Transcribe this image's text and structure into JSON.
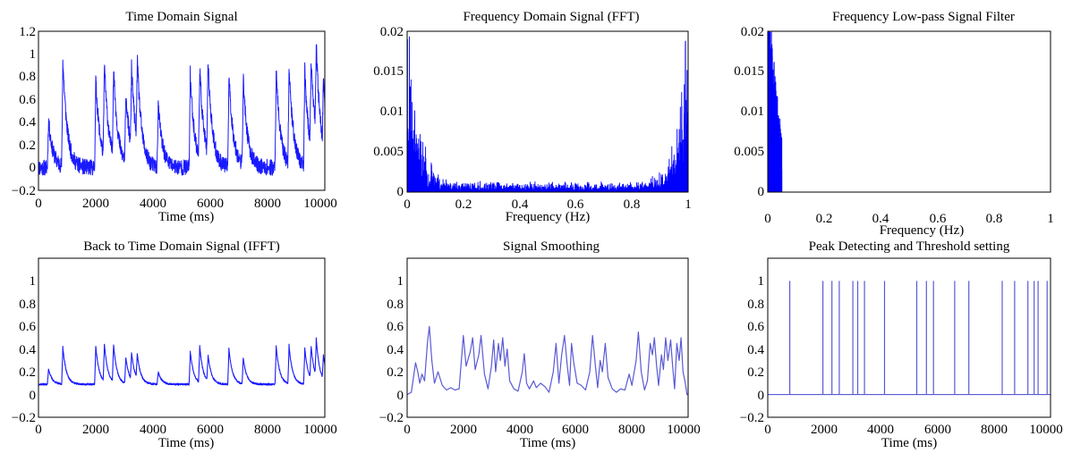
{
  "figure": {
    "panels": [
      {
        "title": "Time Domain Signal",
        "xlabel": "Time (ms)",
        "ylabel": "",
        "xlim": [
          0,
          10000
        ],
        "ylim": [
          -0.2,
          1.2
        ],
        "xticks": [
          "0",
          "2000",
          "4000",
          "6000",
          "8000",
          "10000"
        ],
        "yticks": [
          "−0.2",
          "0",
          "0.2",
          "0.4",
          "0.6",
          "0.8",
          "1",
          "1.2"
        ]
      },
      {
        "title": "Frequency Domain Signal (FFT)",
        "xlabel": "Frequency (Hz)",
        "ylabel": "",
        "xlim": [
          0,
          1
        ],
        "ylim": [
          0,
          0.02
        ],
        "xticks": [
          "0",
          "0.2",
          "0.4",
          "0.6",
          "0.8",
          "1"
        ],
        "yticks": [
          "0",
          "0.005",
          "0.01",
          "0.015",
          "0.02"
        ]
      },
      {
        "title": "Frequency Low-pass Signal Filter",
        "xlabel": "Frequency (Hz)",
        "ylabel": "",
        "xlim": [
          0,
          1
        ],
        "ylim": [
          0,
          0.02
        ],
        "xticks": [
          "0",
          "0.2",
          "0.4",
          "0.6",
          "0.8",
          "1"
        ],
        "yticks": [
          "0",
          "0.005",
          "0.01",
          "0.015",
          "0.02"
        ]
      },
      {
        "title": "Back to Time Domain Signal (IFFT)",
        "xlabel": "Time (ms)",
        "ylabel": "",
        "xlim": [
          0,
          10000
        ],
        "ylim": [
          -0.2,
          1.2
        ],
        "xticks": [
          "0",
          "2000",
          "4000",
          "6000",
          "8000",
          "10000"
        ],
        "yticks": [
          "−0.2",
          "0",
          "0.2",
          "0.4",
          "0.6",
          "0.8",
          "1"
        ]
      },
      {
        "title": "Signal Smoothing",
        "xlabel": "Time (ms)",
        "ylabel": "",
        "xlim": [
          0,
          10000
        ],
        "ylim": [
          -0.2,
          1.2
        ],
        "xticks": [
          "0",
          "2000",
          "4000",
          "6000",
          "8000",
          "10000"
        ],
        "yticks": [
          "−0.2",
          "0",
          "0.2",
          "0.4",
          "0.6",
          "0.8",
          "1"
        ]
      },
      {
        "title": "Peak Detecting and Threshold setting",
        "xlabel": "Time (ms)",
        "ylabel": "",
        "xlim": [
          0,
          10000
        ],
        "ylim": [
          -0.2,
          1.2
        ],
        "xticks": [
          "0",
          "2000",
          "4000",
          "6000",
          "8000",
          "10000"
        ],
        "yticks": [
          "−0.2",
          "0",
          "0.2",
          "0.4",
          "0.6",
          "0.8",
          "1"
        ]
      }
    ]
  },
  "chart_data": [
    {
      "type": "line",
      "title": "Time Domain Signal",
      "xlabel": "Time (ms)",
      "ylabel": "",
      "xlim": [
        0,
        10000
      ],
      "ylim": [
        -0.2,
        1.2
      ],
      "color": "#1a1aff",
      "baseline": 0.0,
      "noise": 0.07,
      "decay_ms": 150,
      "peaks": [
        [
          350,
          0.42
        ],
        [
          850,
          0.95
        ],
        [
          2000,
          0.78
        ],
        [
          2300,
          0.82
        ],
        [
          2620,
          0.78
        ],
        [
          3050,
          0.62
        ],
        [
          3250,
          0.72
        ],
        [
          3450,
          0.73
        ],
        [
          4180,
          0.55
        ],
        [
          5300,
          0.83
        ],
        [
          5630,
          0.8
        ],
        [
          5920,
          0.82
        ],
        [
          6650,
          0.82
        ],
        [
          7150,
          0.76
        ],
        [
          8300,
          0.85
        ],
        [
          8750,
          0.86
        ],
        [
          9300,
          0.83
        ],
        [
          9520,
          0.78
        ],
        [
          9700,
          0.81
        ],
        [
          9950,
          0.6
        ]
      ],
      "grid": false
    },
    {
      "type": "line",
      "title": "Frequency Domain Signal (FFT)",
      "xlabel": "Frequency (Hz)",
      "ylabel": "",
      "xlim": [
        0,
        1
      ],
      "ylim": [
        0,
        0.02
      ],
      "color": "#0000ff",
      "envelope": {
        "floor": 0.0009,
        "edge_amp": 0.02,
        "edge_width": 0.035
      },
      "grid": false
    },
    {
      "type": "line",
      "title": "Frequency Low-pass Signal Filter",
      "xlabel": "Frequency (Hz)",
      "ylabel": "",
      "xlim": [
        0,
        1
      ],
      "ylim": [
        0,
        0.02
      ],
      "color": "#0000ff",
      "cutoff": 0.05,
      "envelope": {
        "floor": 0.0009,
        "edge_amp": 0.02,
        "edge_width": 0.035
      },
      "grid": false
    },
    {
      "type": "line",
      "title": "Back to Time Domain Signal (IFFT)",
      "xlabel": "Time (ms)",
      "ylabel": "",
      "xlim": [
        0,
        10000
      ],
      "ylim": [
        -0.2,
        1.2
      ],
      "color": "#1a1aff",
      "baseline": 0.09,
      "noise": 0.008,
      "decay_ms": 120,
      "peaks": [
        [
          350,
          0.23
        ],
        [
          850,
          0.42
        ],
        [
          2000,
          0.43
        ],
        [
          2300,
          0.42
        ],
        [
          2620,
          0.42
        ],
        [
          3050,
          0.32
        ],
        [
          3250,
          0.33
        ],
        [
          3450,
          0.31
        ],
        [
          4180,
          0.2
        ],
        [
          5300,
          0.38
        ],
        [
          5630,
          0.41
        ],
        [
          5920,
          0.32
        ],
        [
          6650,
          0.41
        ],
        [
          7150,
          0.32
        ],
        [
          8300,
          0.43
        ],
        [
          8750,
          0.43
        ],
        [
          9300,
          0.41
        ],
        [
          9520,
          0.38
        ],
        [
          9700,
          0.42
        ],
        [
          9950,
          0.3
        ]
      ],
      "grid": false
    },
    {
      "type": "line",
      "title": "Signal Smoothing",
      "xlabel": "Time (ms)",
      "ylabel": "",
      "xlim": [
        0,
        10000
      ],
      "ylim": [
        -0.2,
        1.2
      ],
      "color": "#5a5ad6",
      "points": [
        [
          0,
          0.0
        ],
        [
          150,
          0.02
        ],
        [
          300,
          0.28
        ],
        [
          380,
          0.2
        ],
        [
          450,
          0.1
        ],
        [
          530,
          0.18
        ],
        [
          620,
          0.12
        ],
        [
          720,
          0.45
        ],
        [
          790,
          0.6
        ],
        [
          880,
          0.3
        ],
        [
          970,
          0.1
        ],
        [
          1100,
          0.2
        ],
        [
          1250,
          0.08
        ],
        [
          1400,
          0.04
        ],
        [
          1550,
          0.06
        ],
        [
          1700,
          0.04
        ],
        [
          1850,
          0.05
        ],
        [
          2000,
          0.52
        ],
        [
          2100,
          0.25
        ],
        [
          2250,
          0.38
        ],
        [
          2330,
          0.5
        ],
        [
          2420,
          0.22
        ],
        [
          2550,
          0.35
        ],
        [
          2630,
          0.52
        ],
        [
          2750,
          0.18
        ],
        [
          2880,
          0.05
        ],
        [
          3000,
          0.25
        ],
        [
          3080,
          0.48
        ],
        [
          3150,
          0.2
        ],
        [
          3250,
          0.45
        ],
        [
          3320,
          0.3
        ],
        [
          3400,
          0.5
        ],
        [
          3480,
          0.25
        ],
        [
          3560,
          0.4
        ],
        [
          3650,
          0.12
        ],
        [
          3800,
          0.05
        ],
        [
          3950,
          0.03
        ],
        [
          4100,
          0.2
        ],
        [
          4170,
          0.36
        ],
        [
          4250,
          0.1
        ],
        [
          4350,
          0.05
        ],
        [
          4500,
          0.12
        ],
        [
          4600,
          0.06
        ],
        [
          4750,
          0.1
        ],
        [
          4900,
          0.07
        ],
        [
          5050,
          0.02
        ],
        [
          5200,
          0.2
        ],
        [
          5300,
          0.45
        ],
        [
          5400,
          0.1
        ],
        [
          5500,
          0.35
        ],
        [
          5600,
          0.52
        ],
        [
          5700,
          0.25
        ],
        [
          5780,
          0.08
        ],
        [
          5850,
          0.45
        ],
        [
          5930,
          0.28
        ],
        [
          6050,
          0.1
        ],
        [
          6200,
          0.08
        ],
        [
          6350,
          0.04
        ],
        [
          6500,
          0.2
        ],
        [
          6600,
          0.52
        ],
        [
          6700,
          0.25
        ],
        [
          6780,
          0.06
        ],
        [
          6870,
          0.3
        ],
        [
          6950,
          0.2
        ],
        [
          7050,
          0.45
        ],
        [
          7150,
          0.15
        ],
        [
          7300,
          0.05
        ],
        [
          7450,
          0.02
        ],
        [
          7600,
          0.05
        ],
        [
          7750,
          0.04
        ],
        [
          7900,
          0.18
        ],
        [
          8000,
          0.08
        ],
        [
          8150,
          0.3
        ],
        [
          8230,
          0.55
        ],
        [
          8330,
          0.2
        ],
        [
          8450,
          0.04
        ],
        [
          8550,
          0.12
        ],
        [
          8650,
          0.45
        ],
        [
          8730,
          0.35
        ],
        [
          8800,
          0.5
        ],
        [
          8880,
          0.25
        ],
        [
          8950,
          0.08
        ],
        [
          9050,
          0.35
        ],
        [
          9120,
          0.22
        ],
        [
          9200,
          0.5
        ],
        [
          9280,
          0.3
        ],
        [
          9380,
          0.48
        ],
        [
          9450,
          0.25
        ],
        [
          9520,
          0.05
        ],
        [
          9600,
          0.45
        ],
        [
          9680,
          0.3
        ],
        [
          9750,
          0.5
        ],
        [
          9820,
          0.2
        ],
        [
          9900,
          0.1
        ],
        [
          9960,
          0.0
        ],
        [
          10000,
          0.0
        ]
      ],
      "grid": false
    },
    {
      "type": "line",
      "title": "Peak Detecting and Threshold setting",
      "xlabel": "Time (ms)",
      "ylabel": "",
      "xlim": [
        0,
        10000
      ],
      "ylim": [
        -0.2,
        1.2
      ],
      "color": "#5a5ad6",
      "peak_times": [
        780,
        1950,
        2270,
        2530,
        3010,
        3180,
        3420,
        4130,
        5270,
        5610,
        5860,
        6610,
        7110,
        8290,
        8730,
        9200,
        9420,
        9560,
        9880
      ],
      "peak_value": 1,
      "grid": false
    }
  ]
}
